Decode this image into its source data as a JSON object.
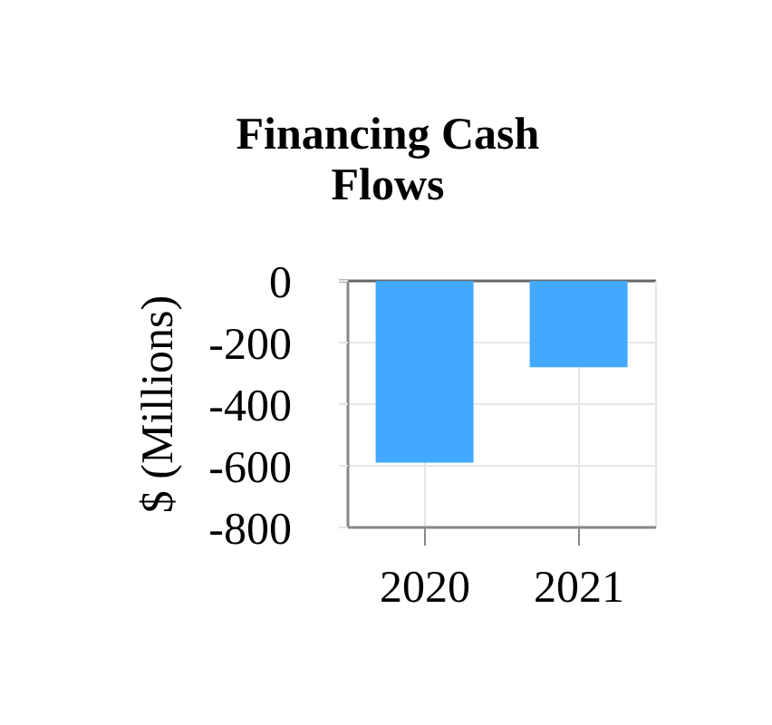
{
  "chart_data": {
    "type": "bar",
    "title": "Financing Cash Flows",
    "ylabel": "$ (Millions)",
    "categories": [
      "2020",
      "2021"
    ],
    "values": [
      -590,
      -280
    ],
    "color": "#42a9fe",
    "ylim": [
      -800,
      0
    ],
    "yticks": [
      -800,
      -600,
      -400,
      -200,
      0
    ],
    "grid": true
  }
}
